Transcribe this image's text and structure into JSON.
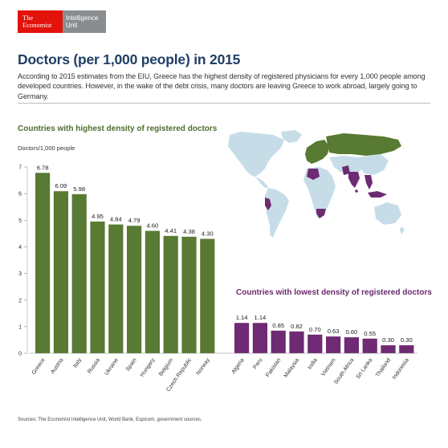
{
  "logo": {
    "line1": "The",
    "line2": "Economist",
    "unit1": "Intelligence",
    "unit2": "Unit"
  },
  "header": {
    "title": "Doctors (per 1,000 people) in 2015",
    "subtitle": "According to 2015 estimates from the EIU, Greece has the highest density of registered physicians for every 1,000 people among developed countries. However, in the wake of the debt crisis, many doctors are leaving Greece to work abroad, largely going to Germany."
  },
  "sources": "Sources: The Economist Intelligence Unit, World Bank, Espicom, government sources.",
  "colors": {
    "high": "#587a33",
    "low": "#6e2a73",
    "land": "#c6dde8",
    "title": "#1f3f66"
  },
  "chart_data": [
    {
      "type": "bar",
      "title": "Countries with highest density of registered doctors",
      "ylabel": "Doctors/1,000 people",
      "ylim": [
        0,
        7
      ],
      "yticks": [
        0,
        1,
        2,
        3,
        4,
        5,
        6,
        7
      ],
      "grid": false,
      "categories": [
        "Greece",
        "Austria",
        "Italy",
        "Russia",
        "Ukraine",
        "Spain",
        "Hungary",
        "Belgium",
        "Czech Republic",
        "Norway"
      ],
      "values": [
        6.78,
        6.09,
        5.98,
        4.95,
        4.84,
        4.79,
        4.6,
        4.41,
        4.38,
        4.3
      ],
      "labels": [
        "6.78",
        "6.09",
        "5.98",
        "4.95",
        "4.84",
        "4.79",
        "4.60",
        "4.41",
        "4.38",
        "4.30"
      ]
    },
    {
      "type": "bar",
      "title": "Countries with lowest density of registered doctors",
      "ylim": [
        0,
        7
      ],
      "categories": [
        "Algeria",
        "Peru",
        "Pakistan",
        "Malaysia",
        "India",
        "Vietnam",
        "South Africa",
        "Sri Lanka",
        "Thailand",
        "Indonesia"
      ],
      "values": [
        1.14,
        1.14,
        0.85,
        0.82,
        0.7,
        0.63,
        0.6,
        0.55,
        0.3,
        0.3
      ],
      "labels": [
        "1.14",
        "1.14",
        "0.85",
        "0.82",
        "0.70",
        "0.63",
        "0.60",
        "0.55",
        "0.30",
        "0.30"
      ]
    }
  ]
}
